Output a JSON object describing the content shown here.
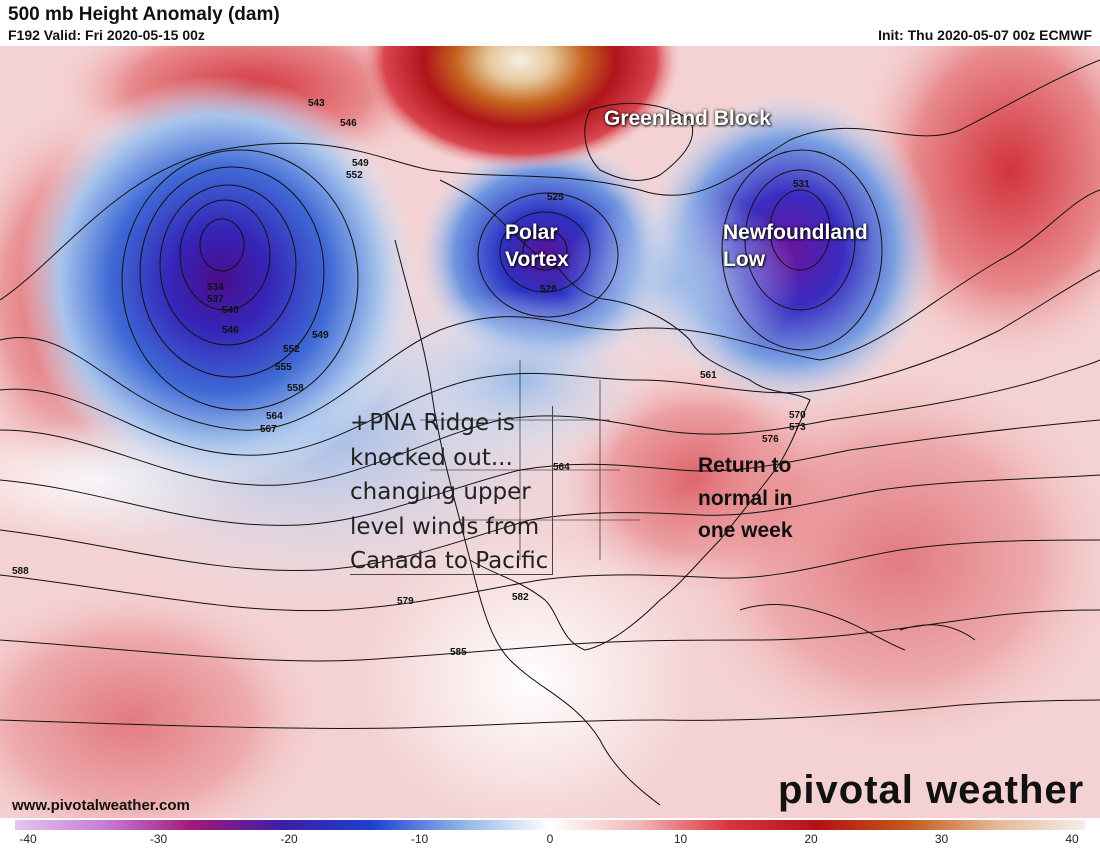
{
  "header": {
    "title": "500 mb Height Anomaly (dam)",
    "valid": "F192 Valid: Fri 2020-05-15 00z",
    "init": "Init: Thu 2020-05-07 00z ECMWF"
  },
  "annotations": {
    "greenland": "Greenland Block",
    "polar_line1": "Polar",
    "polar_line2": "Vortex",
    "newfoundland_line1": "Newfoundland",
    "newfoundland_line2": "Low",
    "pna": "+PNA Ridge is knocked out... changing upper level winds from Canada to Pacific",
    "return": "Return to normal in one week"
  },
  "footer": {
    "website": "www.pivotalweather.com",
    "brand": "pivotal weather"
  },
  "colorbar": {
    "ticks": [
      "-40",
      "-30",
      "-20",
      "-10",
      "0",
      "10",
      "20",
      "30",
      "40"
    ],
    "stops": [
      "#e3c6ee",
      "#c77dd6",
      "#a0187a",
      "#3d1ea8",
      "#1f3fd0",
      "#8fb3e6",
      "#ffffff",
      "#f2b7b7",
      "#d8343e",
      "#b31215",
      "#c2581b",
      "#e4b894",
      "#f3efe8"
    ]
  },
  "contour_labels": [
    "543",
    "546",
    "549",
    "552",
    "534",
    "537",
    "540",
    "546",
    "549",
    "552",
    "555",
    "558",
    "561",
    "564",
    "567",
    "570",
    "573",
    "576",
    "579",
    "582",
    "585",
    "588",
    "531",
    "528",
    "525",
    "564"
  ]
}
